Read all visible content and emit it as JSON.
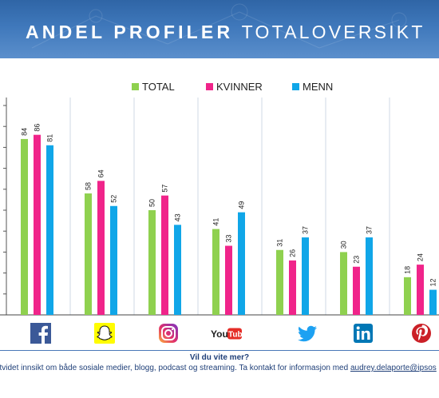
{
  "header": {
    "title_bold": "ANDEL PROFILER",
    "title_light": "TOTALOVERSIKT"
  },
  "colors": {
    "total": "#8fd14f",
    "kvinner": "#f0248a",
    "menn": "#10a6e8"
  },
  "icons": [
    "facebook-icon",
    "snapchat-icon",
    "instagram-icon",
    "youtube-icon",
    "twitter-icon",
    "linkedin-icon",
    "pinterest-icon"
  ],
  "youtube_label": "YouTube",
  "chart_data": {
    "type": "bar",
    "title": "",
    "categories": [
      "Facebook",
      "Snapchat",
      "Instagram",
      "YouTube",
      "Twitter",
      "LinkedIn",
      "Pinterest"
    ],
    "series": [
      {
        "name": "TOTAL",
        "values": [
          84,
          58,
          50,
          41,
          31,
          30,
          18
        ]
      },
      {
        "name": "KVINNER",
        "values": [
          86,
          64,
          57,
          33,
          26,
          23,
          24
        ]
      },
      {
        "name": "MENN",
        "values": [
          81,
          52,
          43,
          49,
          37,
          37,
          12
        ]
      }
    ],
    "ylim": [
      0,
      100
    ],
    "grid": false,
    "legend": "top-center"
  },
  "footer": {
    "question": "Vil du vite mer?",
    "text": "gså utvidet innsikt om både sosiale medier, blogg, podcast og streaming. Ta kontakt for informasjon med ",
    "email": "audrey.delaporte@ipsos"
  }
}
